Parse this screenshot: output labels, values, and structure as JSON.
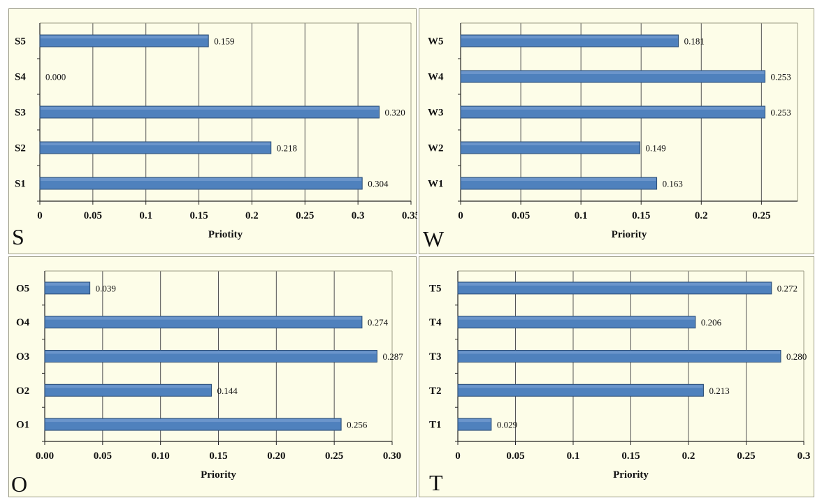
{
  "chart_data": [
    {
      "type": "bar",
      "orientation": "horizontal",
      "panel_letter": "S",
      "xlabel": "Priotity",
      "categories": [
        "S1",
        "S2",
        "S3",
        "S4",
        "S5"
      ],
      "values": [
        0.304,
        0.218,
        0.32,
        0.0,
        0.159
      ],
      "value_labels": [
        "0.304",
        "0.218",
        "0.320",
        "0.000",
        "0.159"
      ],
      "xlim": [
        0,
        0.35
      ],
      "xticks": [
        0,
        0.05,
        0.1,
        0.15,
        0.2,
        0.25,
        0.3,
        0.35
      ],
      "xtick_labels": [
        "0",
        "0.05",
        "0.1",
        "0.15",
        "0.2",
        "0.25",
        "0.3",
        "0.35"
      ],
      "grid": true
    },
    {
      "type": "bar",
      "orientation": "horizontal",
      "panel_letter": "W",
      "xlabel": "Priority",
      "categories": [
        "W1",
        "W2",
        "W3",
        "W4",
        "W5"
      ],
      "values": [
        0.163,
        0.149,
        0.253,
        0.253,
        0.181
      ],
      "value_labels": [
        "0.163",
        "0.149",
        "0.253",
        "0.253",
        "0.181"
      ],
      "xlim": [
        0,
        0.28
      ],
      "xticks": [
        0,
        0.05,
        0.1,
        0.15,
        0.2,
        0.25
      ],
      "xtick_labels": [
        "0",
        "0.05",
        "0.1",
        "0.15",
        "0.2",
        "0.25"
      ],
      "grid": true
    },
    {
      "type": "bar",
      "orientation": "horizontal",
      "panel_letter": "O",
      "xlabel": "Priority",
      "categories": [
        "O1",
        "O2",
        "O3",
        "O4",
        "O5"
      ],
      "values": [
        0.256,
        0.144,
        0.287,
        0.274,
        0.039
      ],
      "value_labels": [
        "0.256",
        "0.144",
        "0.287",
        "0.274",
        "0.039"
      ],
      "xlim": [
        0,
        0.3
      ],
      "xticks": [
        0,
        0.05,
        0.1,
        0.15,
        0.2,
        0.25,
        0.3
      ],
      "xtick_labels": [
        "0.00",
        "0.05",
        "0.10",
        "0.15",
        "0.20",
        "0.25",
        "0.30"
      ],
      "grid": true
    },
    {
      "type": "bar",
      "orientation": "horizontal",
      "panel_letter": "T",
      "xlabel": "Priority",
      "categories": [
        "T1",
        "T2",
        "T3",
        "T4",
        "T5"
      ],
      "values": [
        0.029,
        0.213,
        0.28,
        0.206,
        0.272
      ],
      "value_labels": [
        "0.029",
        "0.213",
        "0.280",
        "0.206",
        "0.272"
      ],
      "xlim": [
        0,
        0.3
      ],
      "xticks": [
        0,
        0.05,
        0.1,
        0.15,
        0.2,
        0.25,
        0.3
      ],
      "xtick_labels": [
        "0",
        "0.05",
        "0.1",
        "0.15",
        "0.2",
        "0.25",
        "0.3"
      ],
      "grid": true
    }
  ],
  "colors": {
    "bar_fill": "#4f81bd",
    "bar_stroke": "#2c4d75",
    "panel_background": "#fdfde8",
    "gridline": "#555555"
  }
}
